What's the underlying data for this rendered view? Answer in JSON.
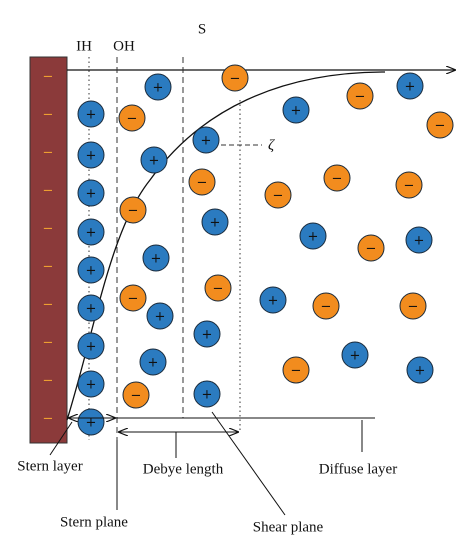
{
  "labels": {
    "ih": "IH",
    "oh": "OH",
    "s": "S",
    "zeta": "ζ",
    "stern_layer": "Stern layer",
    "debye_length": "Debye length",
    "diffuse_layer": "Diffuse layer",
    "stern_plane": "Stern plane",
    "shear_plane": "Shear plane"
  },
  "signs": {
    "cation": "+",
    "anion": "−",
    "electrode": "−"
  }
}
